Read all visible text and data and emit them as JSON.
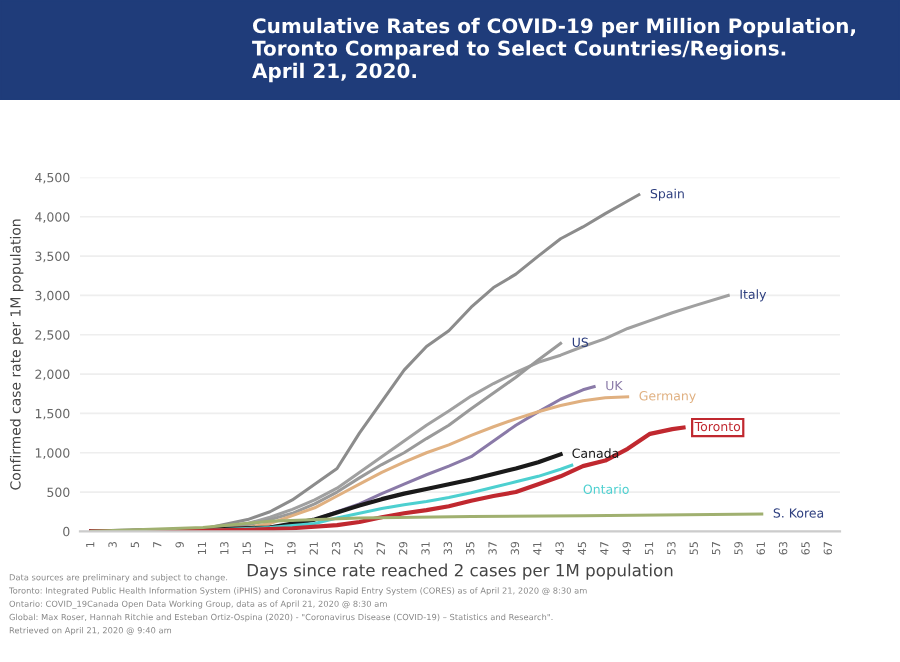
{
  "chart_data": {
    "type": "line",
    "title": "Cumulative Rates of COVID-19 per Million Population,\nToronto Compared to Select Countries/Regions.\nApril 21, 2020.",
    "xlabel": "Days since rate reached 2 cases per 1M population",
    "ylabel": "Confirmed case rate per 1M population",
    "xlim": [
      0,
      68
    ],
    "xticks": [
      1,
      3,
      5,
      7,
      9,
      11,
      13,
      15,
      17,
      19,
      21,
      23,
      25,
      27,
      29,
      31,
      33,
      35,
      37,
      39,
      41,
      43,
      45,
      47,
      49,
      51,
      53,
      55,
      57,
      59,
      61,
      63,
      65,
      67
    ],
    "ylim": [
      0,
      4500
    ],
    "yticks": [
      0,
      {
        "value": 500,
        "label": "500"
      },
      {
        "value": 1000,
        "label": "1,000"
      },
      {
        "value": 1500,
        "label": "1,500"
      },
      {
        "value": 2000,
        "label": "2,000"
      },
      {
        "value": 2500,
        "label": "2,500"
      },
      {
        "value": 3000,
        "label": "3,000"
      },
      {
        "value": 3500,
        "label": "3,500"
      },
      {
        "value": 4000,
        "label": "4,000"
      },
      {
        "value": 4500,
        "label": "4,500"
      }
    ],
    "grid": "y",
    "legend": false,
    "marker": "none",
    "line_style": "solid",
    "series": [
      {
        "name": "Spain",
        "color": "#8c8c8c",
        "x": [
          1,
          11,
          15,
          17,
          19,
          21,
          23,
          25,
          27,
          29,
          31,
          33,
          35,
          37,
          39,
          41,
          43,
          45,
          47,
          49,
          50
        ],
        "values": [
          0,
          30,
          150,
          250,
          400,
          600,
          800,
          1250,
          1650,
          2050,
          2350,
          2550,
          2850,
          3100,
          3270,
          3500,
          3720,
          3870,
          4040,
          4200,
          4280
        ]
      },
      {
        "name": "Italy",
        "color": "#a0a0a0",
        "x": [
          1,
          11,
          15,
          17,
          19,
          21,
          23,
          25,
          27,
          29,
          31,
          33,
          35,
          37,
          39,
          41,
          43,
          45,
          47,
          49,
          51,
          53,
          55,
          58
        ],
        "values": [
          0,
          30,
          100,
          180,
          280,
          400,
          550,
          750,
          950,
          1150,
          1350,
          1530,
          1720,
          1880,
          2020,
          2150,
          2240,
          2350,
          2450,
          2580,
          2680,
          2780,
          2870,
          3000
        ]
      },
      {
        "name": "US",
        "color": "#9a9a9a",
        "x": [
          1,
          11,
          15,
          17,
          19,
          21,
          23,
          25,
          27,
          29,
          31,
          33,
          35,
          37,
          39,
          41,
          43
        ],
        "values": [
          0,
          20,
          80,
          150,
          230,
          350,
          500,
          680,
          850,
          1000,
          1180,
          1350,
          1560,
          1760,
          1960,
          2180,
          2390
        ]
      },
      {
        "name": "UK",
        "color": "#8a7aa8",
        "x": [
          1,
          11,
          15,
          19,
          21,
          23,
          25,
          27,
          29,
          31,
          33,
          35,
          37,
          39,
          41,
          43,
          45,
          46
        ],
        "values": [
          0,
          10,
          40,
          80,
          150,
          250,
          350,
          480,
          600,
          720,
          830,
          950,
          1150,
          1350,
          1520,
          1680,
          1800,
          1840
        ]
      },
      {
        "name": "Germany",
        "color": "#e0b080",
        "x": [
          1,
          11,
          15,
          17,
          19,
          21,
          23,
          25,
          27,
          29,
          31,
          33,
          35,
          37,
          39,
          41,
          43,
          45,
          47,
          49
        ],
        "values": [
          0,
          20,
          50,
          100,
          200,
          300,
          450,
          600,
          750,
          880,
          1000,
          1100,
          1220,
          1330,
          1430,
          1520,
          1600,
          1660,
          1700,
          1710
        ]
      },
      {
        "name": "Canada",
        "color": "#1a1a1a",
        "x": [
          1,
          11,
          17,
          19,
          21,
          23,
          25,
          27,
          29,
          31,
          33,
          35,
          37,
          39,
          41,
          43
        ],
        "values": [
          0,
          20,
          50,
          100,
          150,
          240,
          330,
          410,
          480,
          540,
          600,
          660,
          730,
          800,
          880,
          980
        ]
      },
      {
        "name": "Ontario",
        "color": "#4dd0d0",
        "x": [
          1,
          11,
          17,
          21,
          23,
          25,
          27,
          29,
          31,
          33,
          35,
          37,
          39,
          41,
          43,
          44
        ],
        "values": [
          0,
          10,
          50,
          100,
          170,
          230,
          290,
          340,
          380,
          430,
          490,
          560,
          630,
          700,
          790,
          840
        ]
      },
      {
        "name": "Toronto",
        "color": "#c0282f",
        "x": [
          1,
          11,
          15,
          19,
          23,
          25,
          27,
          29,
          31,
          33,
          35,
          37,
          39,
          41,
          43,
          45,
          47,
          49,
          51,
          53,
          54
        ],
        "values": [
          0,
          10,
          20,
          40,
          80,
          120,
          180,
          230,
          270,
          320,
          390,
          450,
          500,
          600,
          700,
          830,
          900,
          1050,
          1240,
          1300,
          1320
        ]
      },
      {
        "name": "S. Korea",
        "color": "#a0b070",
        "x": [
          1,
          11,
          17,
          25,
          35,
          45,
          61
        ],
        "values": [
          0,
          50,
          130,
          170,
          190,
          200,
          220
        ]
      }
    ],
    "annotations": [
      "Data sources are preliminary and subject to change.",
      "Toronto: Integrated Public Health Information System (iPHIS) and Coronavirus Rapid Entry System (CORES) as of April 21, 2020 @ 8:30 am",
      "Ontario: COVID_19Canada Open Data Working Group, data as of April 21, 2020 @ 8:30 am",
      "Global: Max Roser, Hannah Ritchie and Esteban Ortiz-Ospina (2020) - \"Coronavirus Disease (COVID-19) – Statistics and Research\".",
      "Retrieved on April 21, 2020 @ 9:40 am"
    ]
  }
}
